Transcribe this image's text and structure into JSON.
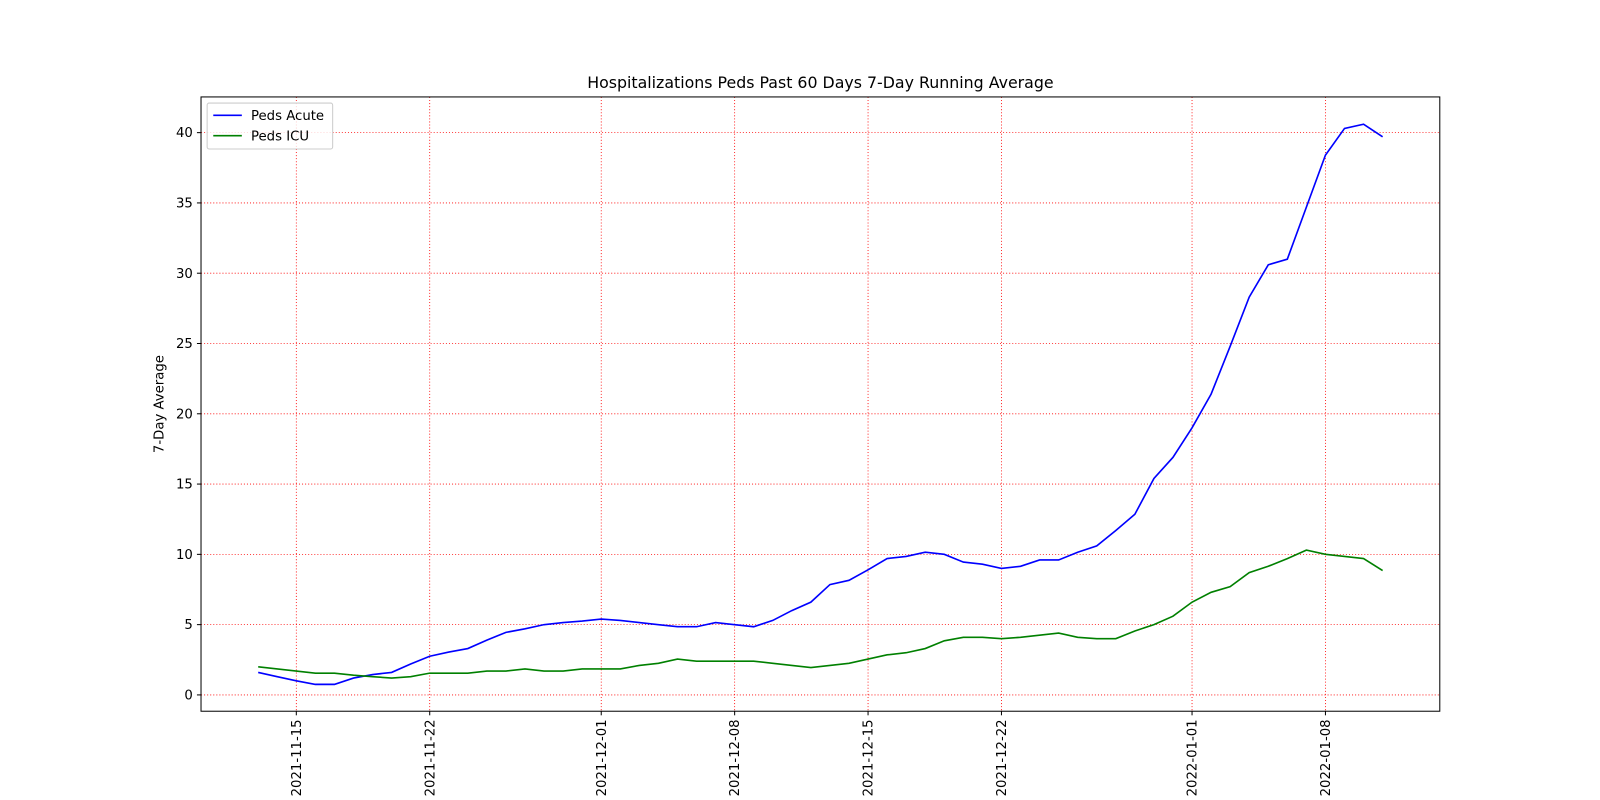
{
  "chart_data": {
    "type": "line",
    "title": "Hospitalizations Peds Past 60 Days 7-Day Running Average",
    "ylabel": "7-Day Average",
    "x": [
      "2021-11-13",
      "2021-11-14",
      "2021-11-15",
      "2021-11-16",
      "2021-11-17",
      "2021-11-18",
      "2021-11-19",
      "2021-11-20",
      "2021-11-21",
      "2021-11-22",
      "2021-11-23",
      "2021-11-24",
      "2021-11-25",
      "2021-11-26",
      "2021-11-27",
      "2021-11-28",
      "2021-11-29",
      "2021-11-30",
      "2021-12-01",
      "2021-12-02",
      "2021-12-03",
      "2021-12-04",
      "2021-12-05",
      "2021-12-06",
      "2021-12-07",
      "2021-12-08",
      "2021-12-09",
      "2021-12-10",
      "2021-12-11",
      "2021-12-12",
      "2021-12-13",
      "2021-12-14",
      "2021-12-15",
      "2021-12-16",
      "2021-12-17",
      "2021-12-18",
      "2021-12-19",
      "2021-12-20",
      "2021-12-21",
      "2021-12-22",
      "2021-12-23",
      "2021-12-24",
      "2021-12-25",
      "2021-12-26",
      "2021-12-27",
      "2021-12-28",
      "2021-12-29",
      "2021-12-30",
      "2021-12-31",
      "2022-01-01",
      "2022-01-02",
      "2022-01-03",
      "2022-01-04",
      "2022-01-05",
      "2022-01-06",
      "2022-01-07",
      "2022-01-08",
      "2022-01-09",
      "2022-01-10",
      "2022-01-11"
    ],
    "series": [
      {
        "name": "Peds Acute",
        "color": "#0000ff",
        "values": [
          1.6,
          1.3,
          1.0,
          0.75,
          0.75,
          1.2,
          1.45,
          1.6,
          2.2,
          2.75,
          3.05,
          3.3,
          3.9,
          4.45,
          4.7,
          5.0,
          5.15,
          5.25,
          5.4,
          5.3,
          5.15,
          5.0,
          4.85,
          4.85,
          5.15,
          5.0,
          4.85,
          5.3,
          6.0,
          6.6,
          7.85,
          8.15,
          8.9,
          9.7,
          9.85,
          10.15,
          10.0,
          9.45,
          9.3,
          9.0,
          9.15,
          9.6,
          9.6,
          10.15,
          10.6,
          11.7,
          12.85,
          15.4,
          16.9,
          19.0,
          21.4,
          24.8,
          28.3,
          30.6,
          31.0,
          34.7,
          38.4,
          40.3,
          40.6,
          39.7
        ]
      },
      {
        "name": "Peds ICU",
        "color": "#008000",
        "values": [
          2.0,
          1.85,
          1.7,
          1.55,
          1.55,
          1.4,
          1.3,
          1.2,
          1.3,
          1.55,
          1.55,
          1.55,
          1.7,
          1.7,
          1.85,
          1.7,
          1.7,
          1.85,
          1.85,
          1.85,
          2.1,
          2.25,
          2.55,
          2.4,
          2.4,
          2.4,
          2.4,
          2.25,
          2.1,
          1.95,
          2.1,
          2.25,
          2.55,
          2.85,
          3.0,
          3.3,
          3.85,
          4.1,
          4.1,
          4.0,
          4.1,
          4.25,
          4.4,
          4.1,
          4.0,
          4.0,
          4.55,
          5.0,
          5.6,
          6.6,
          7.3,
          7.7,
          8.7,
          9.15,
          9.7,
          10.3,
          10.0,
          9.85,
          9.7,
          8.85
        ]
      }
    ],
    "xlim": [
      "2021-11-10",
      "2022-01-14"
    ],
    "xticks": [
      "2021-11-15",
      "2021-11-22",
      "2021-12-01",
      "2021-12-08",
      "2021-12-15",
      "2021-12-22",
      "2022-01-01",
      "2022-01-08"
    ],
    "ylim": [
      -1.16,
      42.54
    ],
    "yticks": [
      0,
      5,
      10,
      15,
      20,
      25,
      30,
      35,
      40
    ],
    "grid": true,
    "grid_color": "#ff0000",
    "legend": "upper left"
  }
}
